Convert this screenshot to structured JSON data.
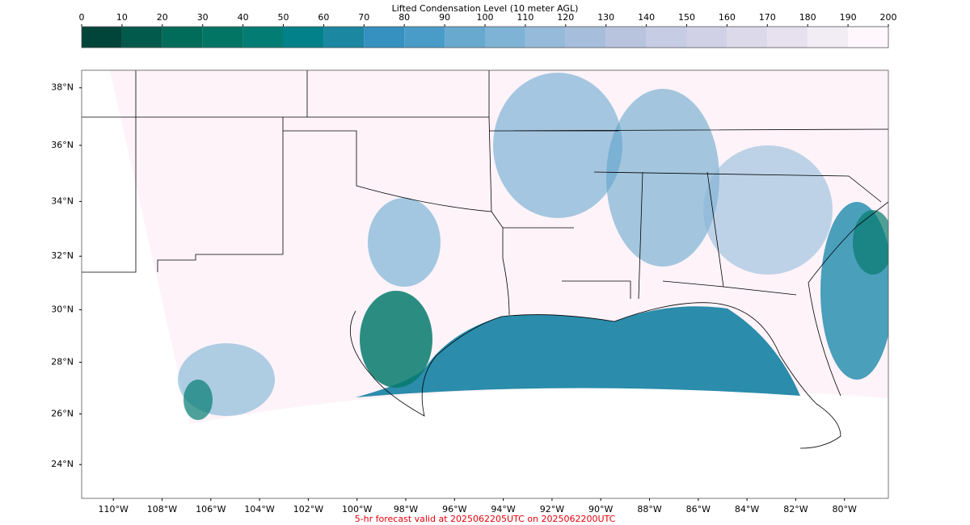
{
  "colorbar": {
    "title": "Lifted Condensation Level (10 meter AGL)",
    "ticks": [
      0,
      10,
      20,
      30,
      40,
      50,
      60,
      70,
      80,
      90,
      100,
      110,
      120,
      130,
      140,
      150,
      160,
      170,
      180,
      190,
      200
    ],
    "colors": [
      "#01443a",
      "#015a4b",
      "#016c59",
      "#027565",
      "#037d74",
      "#02818a",
      "#1b87a0",
      "#3690c0",
      "#4a9cc8",
      "#67a9cf",
      "#7fb3d6",
      "#96bad9",
      "#a6bddb",
      "#b8c3de",
      "#c6cce4",
      "#d0d1e6",
      "#dcd9ea",
      "#e7e1ef",
      "#f2ecf5",
      "#fff7fb"
    ]
  },
  "map": {
    "lon_lim": [
      -111.3,
      -78.2
    ],
    "lat_lim": [
      22.65,
      38.6
    ],
    "lat_ticks": [
      {
        "value": 38,
        "label": "38°N"
      },
      {
        "value": 36,
        "label": "36°N"
      },
      {
        "value": 34,
        "label": "34°N"
      },
      {
        "value": 32,
        "label": "32°N"
      },
      {
        "value": 30,
        "label": "30°N"
      },
      {
        "value": 28,
        "label": "28°N"
      },
      {
        "value": 26,
        "label": "26°N"
      },
      {
        "value": 24,
        "label": "24°N"
      }
    ],
    "lon_ticks": [
      {
        "value": -110,
        "label": "110°W"
      },
      {
        "value": -108,
        "label": "108°W"
      },
      {
        "value": -106,
        "label": "106°W"
      },
      {
        "value": -104,
        "label": "104°W"
      },
      {
        "value": -102,
        "label": "102°W"
      },
      {
        "value": -100,
        "label": "100°W"
      },
      {
        "value": -98,
        "label": "98°W"
      },
      {
        "value": -96,
        "label": "96°W"
      },
      {
        "value": -94,
        "label": "94°W"
      },
      {
        "value": -92,
        "label": "92°W"
      },
      {
        "value": -90,
        "label": "90°W"
      },
      {
        "value": -88,
        "label": "88°W"
      },
      {
        "value": -86,
        "label": "86°W"
      },
      {
        "value": -84,
        "label": "84°W"
      },
      {
        "value": -82,
        "label": "82°W"
      },
      {
        "value": -80,
        "label": "80°W"
      }
    ]
  },
  "footer": "5-hr forecast valid at 2025062205UTC on 2025062200UTC"
}
